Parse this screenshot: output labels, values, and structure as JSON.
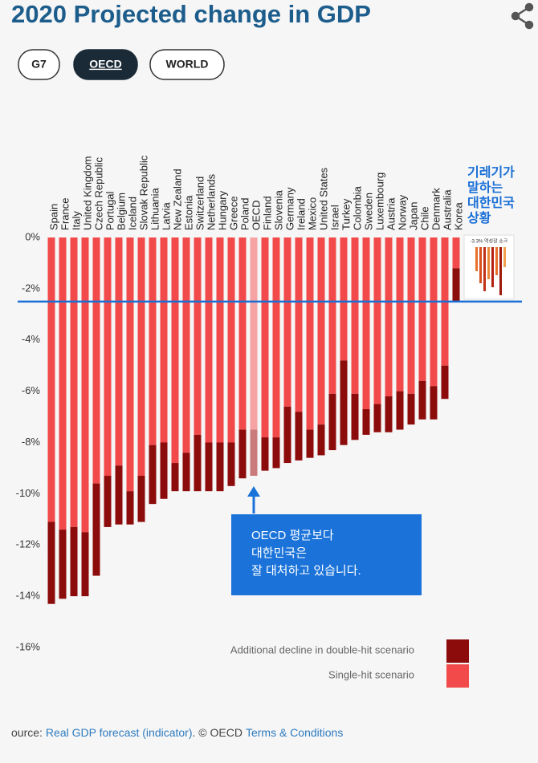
{
  "tabs": [
    "G7",
    "OECD",
    "WORLD"
  ],
  "thumbnail_text": "-3.3% 역성장 쇼크",
  "source": {
    "prefix": "ource:",
    "link": "Real GDP forecast (indicator)",
    "copyright": ". © OECD",
    "terms": "Terms & Conditions"
  },
  "chart_data": {
    "type": "bar",
    "stacked": true,
    "title": "2020 Projected change in GDP",
    "categories": [
      "Spain",
      "France",
      "Italy",
      "United Kingdom",
      "Czech Republic",
      "Portugal",
      "Belgium",
      "Iceland",
      "Slovak Republic",
      "Lithuania",
      "Latvia",
      "New Zealand",
      "Estonia",
      "Switzerland",
      "Netherlands",
      "Hungary",
      "Greece",
      "Poland",
      "OECD",
      "Finland",
      "Slovenia",
      "Germany",
      "Ireland",
      "Mexico",
      "United States",
      "Israel",
      "Turkey",
      "Colombia",
      "Sweden",
      "Luxembourg",
      "Austria",
      "Norway",
      "Japan",
      "Chile",
      "Denmark",
      "Australia",
      "Korea"
    ],
    "series": [
      {
        "name": "Single-hit scenario",
        "color": "#f24a4a",
        "highlight_color": "#f6a3a3",
        "values": [
          -11.1,
          -11.4,
          -11.3,
          -11.5,
          -9.6,
          -9.3,
          -8.9,
          -9.9,
          -9.3,
          -8.1,
          -8.0,
          -8.8,
          -8.4,
          -7.7,
          -8.0,
          -8.0,
          -8.0,
          -7.5,
          -7.5,
          -7.8,
          -7.8,
          -6.6,
          -6.8,
          -7.5,
          -7.3,
          -6.1,
          -4.8,
          -6.1,
          -6.7,
          -6.5,
          -6.2,
          -6.0,
          -6.1,
          -5.6,
          -5.8,
          -5.0,
          -1.2
        ]
      },
      {
        "name": "Additional decline in double-hit scenario",
        "color": "#8c0b0b",
        "highlight_color": "#c97a7a",
        "values": [
          -3.2,
          -2.7,
          -2.7,
          -2.5,
          -3.6,
          -2.0,
          -2.3,
          -1.3,
          -1.8,
          -2.3,
          -2.2,
          -1.1,
          -1.5,
          -2.2,
          -1.9,
          -1.9,
          -1.7,
          -1.9,
          -1.8,
          -1.3,
          -1.2,
          -2.2,
          -1.9,
          -1.1,
          -1.2,
          -2.2,
          -3.3,
          -1.8,
          -1.0,
          -1.1,
          -1.4,
          -1.5,
          -1.2,
          -1.5,
          -1.3,
          -1.3,
          -1.3
        ]
      }
    ],
    "highlight_index": 18,
    "ylim": [
      -16,
      0
    ],
    "yticks": [
      {
        "value": 0,
        "label": "0%"
      },
      {
        "value": -2,
        "label": "-2%"
      },
      {
        "value": -4,
        "label": "-4%"
      },
      {
        "value": -6,
        "label": "-6%"
      },
      {
        "value": -8,
        "label": "-8%"
      },
      {
        "value": -10,
        "label": "-10%"
      },
      {
        "value": -12,
        "label": "-12%"
      },
      {
        "value": -14,
        "label": "-14%"
      },
      {
        "value": -16,
        "label": "-16%"
      }
    ],
    "grid": false,
    "reference_line": {
      "value": -2.5,
      "color": "#1a6fd6"
    },
    "annotations": [
      {
        "lines": [
          "기레기가",
          "말하는",
          "대한민국",
          "상황"
        ],
        "color": "#1a6fd6"
      },
      {
        "lines": [
          "OECD 평균보다",
          "대한민국은",
          "잘 대처하고 있습니다."
        ],
        "color": "#1b73d9"
      }
    ]
  }
}
